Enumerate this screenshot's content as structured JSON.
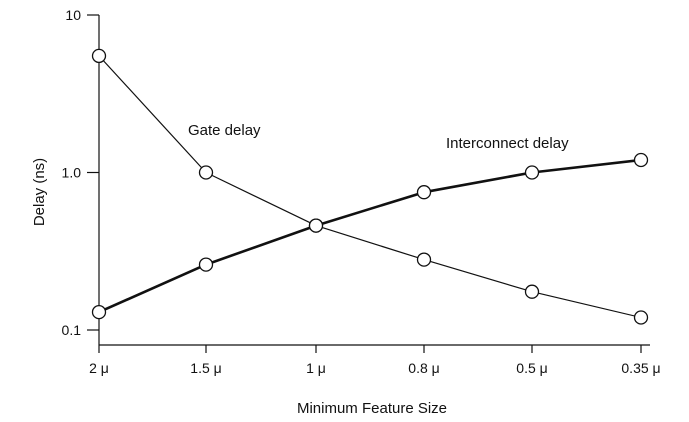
{
  "chart_data": {
    "type": "line",
    "ylabel": "Delay  (ns)",
    "xlabel": "Minimum Feature Size",
    "y_scale": "log",
    "ylim": [
      0.1,
      10
    ],
    "y_ticks": [
      "10",
      "1.0",
      "0.1"
    ],
    "categories": [
      "2 μ",
      "1.5 μ",
      "1 μ",
      "0.8 μ",
      "0.5 μ",
      "0.35 μ"
    ],
    "series": [
      {
        "name": "Gate delay",
        "values": [
          5.5,
          1.0,
          0.46,
          0.28,
          0.175,
          0.12
        ],
        "line_style": "thin"
      },
      {
        "name": "Interconnect delay",
        "values": [
          0.13,
          0.26,
          0.46,
          0.75,
          1.0,
          1.2
        ],
        "line_style": "thick"
      }
    ],
    "markers": "open-circle",
    "grid": false,
    "colors": {
      "line": "#111111",
      "marker_fill": "#ffffff"
    }
  }
}
